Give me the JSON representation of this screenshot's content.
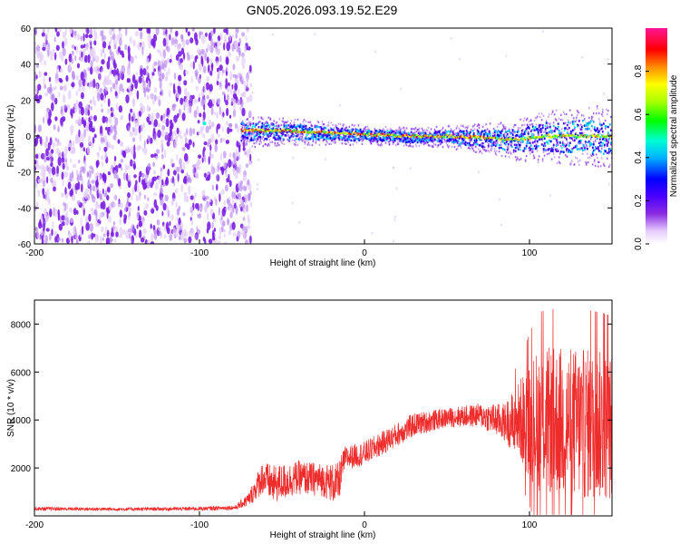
{
  "title": "GN05.2026.093.19.52.E29",
  "colors": {
    "snr_line": "#ee2c2c",
    "axis": "#000000",
    "scatter_bg": "#8a2be2"
  },
  "chart_data": [
    {
      "type": "heatmap",
      "name": "spectrogram",
      "xlabel": "Height of straight line (km)",
      "ylabel": "Frequency (Hz)",
      "xlim": [
        -200,
        150
      ],
      "ylim": [
        -60,
        60
      ],
      "xticks": [
        -200,
        -100,
        0,
        100
      ],
      "xtick_labels": [
        "-200",
        "-100",
        "0",
        "100"
      ],
      "yticks": [
        -60,
        -40,
        -20,
        0,
        20,
        40,
        60
      ],
      "ytick_labels": [
        "-60",
        "-40",
        "-20",
        "0",
        "20",
        "40",
        "60"
      ],
      "noise_region_x": [
        -200,
        -72
      ],
      "signal_band_x": [
        -75,
        150
      ],
      "signal_center_freq": [
        [
          -75,
          3
        ],
        [
          -50,
          3
        ],
        [
          -25,
          2
        ],
        [
          0,
          1
        ],
        [
          25,
          0
        ],
        [
          50,
          0
        ],
        [
          75,
          -1
        ],
        [
          90,
          -2
        ],
        [
          110,
          0
        ],
        [
          130,
          0
        ],
        [
          150,
          0
        ]
      ],
      "signal_halfwidth": [
        [
          -75,
          5
        ],
        [
          -40,
          4
        ],
        [
          0,
          3
        ],
        [
          40,
          3
        ],
        [
          80,
          5
        ],
        [
          110,
          8
        ],
        [
          150,
          10
        ]
      ],
      "colorbar": {
        "label": "Normalized spectral amplitude",
        "range": [
          0.0,
          1.0
        ],
        "ticks": [
          0.0,
          0.2,
          0.4,
          0.6,
          0.8
        ],
        "tick_labels": [
          "0.0",
          "0.2",
          "0.4",
          "0.6",
          "0.8"
        ],
        "colormap": [
          "#ffffff",
          "#e6ccff",
          "#8a2be2",
          "#4b00ff",
          "#0000ff",
          "#00b4ff",
          "#00ffd2",
          "#00ff00",
          "#aaff00",
          "#ffff00",
          "#ff8c00",
          "#ff0000",
          "#ff1493"
        ]
      }
    },
    {
      "type": "line",
      "name": "snr",
      "xlabel": "Height of straight line (km)",
      "ylabel": "SNR (10 * v/v)",
      "xlim": [
        -200,
        150
      ],
      "ylim": [
        0,
        9000
      ],
      "xticks": [
        -200,
        -100,
        0,
        100
      ],
      "xtick_labels": [
        "-200",
        "-100",
        "0",
        "100"
      ],
      "yticks": [
        2000,
        4000,
        6000,
        8000
      ],
      "ytick_labels": [
        "2000",
        "4000",
        "6000",
        "8000"
      ],
      "envelope": [
        [
          -200,
          300,
          80
        ],
        [
          -150,
          280,
          70
        ],
        [
          -100,
          300,
          80
        ],
        [
          -78,
          350,
          100
        ],
        [
          -70,
          700,
          300
        ],
        [
          -62,
          1600,
          700
        ],
        [
          -55,
          1300,
          800
        ],
        [
          -40,
          1600,
          700
        ],
        [
          -25,
          1500,
          700
        ],
        [
          -16,
          1300,
          900
        ],
        [
          -12,
          2400,
          500
        ],
        [
          0,
          2600,
          500
        ],
        [
          15,
          3200,
          500
        ],
        [
          30,
          3800,
          500
        ],
        [
          50,
          4100,
          400
        ],
        [
          70,
          4200,
          500
        ],
        [
          85,
          3900,
          800
        ],
        [
          95,
          4000,
          1800
        ],
        [
          105,
          4000,
          3000
        ],
        [
          120,
          3900,
          3200
        ],
        [
          135,
          3800,
          3200
        ],
        [
          150,
          3700,
          3100
        ]
      ]
    }
  ]
}
